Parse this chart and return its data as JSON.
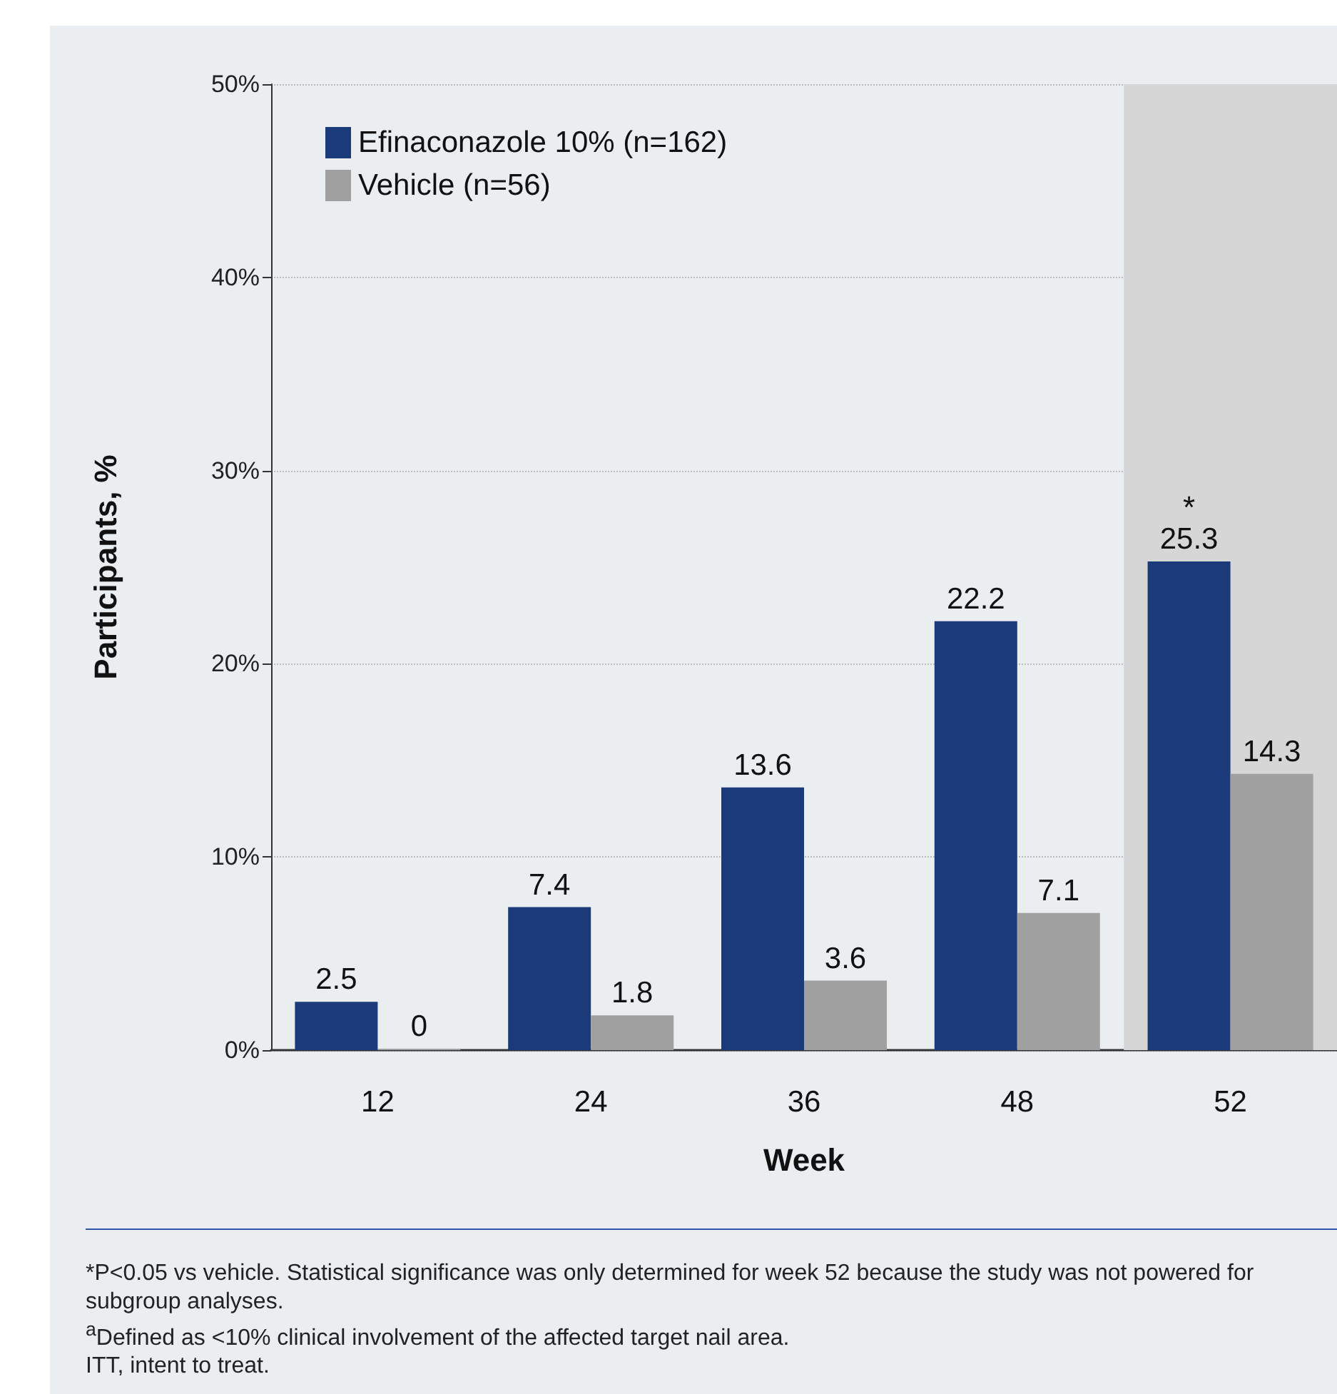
{
  "chart_data": {
    "type": "bar",
    "xlabel": "Week",
    "ylabel": "Participants, %",
    "categories": [
      "12",
      "24",
      "36",
      "48",
      "52"
    ],
    "series": [
      {
        "name": "Efinaconazole 10% (n=162)",
        "color": "#1b3a7a",
        "values": [
          2.5,
          7.4,
          13.6,
          22.2,
          25.3
        ]
      },
      {
        "name": "Vehicle (n=56)",
        "color": "#a0a0a0",
        "values": [
          0,
          1.8,
          3.6,
          7.1,
          14.3
        ]
      }
    ],
    "ylim": [
      0,
      50
    ],
    "yticks": [
      {
        "value": 0,
        "label": "0%"
      },
      {
        "value": 10,
        "label": "10%"
      },
      {
        "value": 20,
        "label": "20%"
      },
      {
        "value": 30,
        "label": "30%"
      },
      {
        "value": 40,
        "label": "40%"
      },
      {
        "value": 50,
        "label": "50%"
      }
    ],
    "grid": "y",
    "legend": "top left",
    "data_labels": true,
    "bands": [
      {
        "axis": "x",
        "from": "52",
        "to": "52",
        "color": "#d6d6d6"
      }
    ],
    "annotations": [
      {
        "text": "*",
        "x": "52",
        "y": 25.3
      },
      "*P<0.05 vs vehicle. Statistical significance was only determined for week 52 because the study was not powered for subgroup analyses.",
      "$^{a}$Defined as <10% clinical involvement of the affected target nail area.",
      "ITT, intent to treat."
    ]
  }
}
